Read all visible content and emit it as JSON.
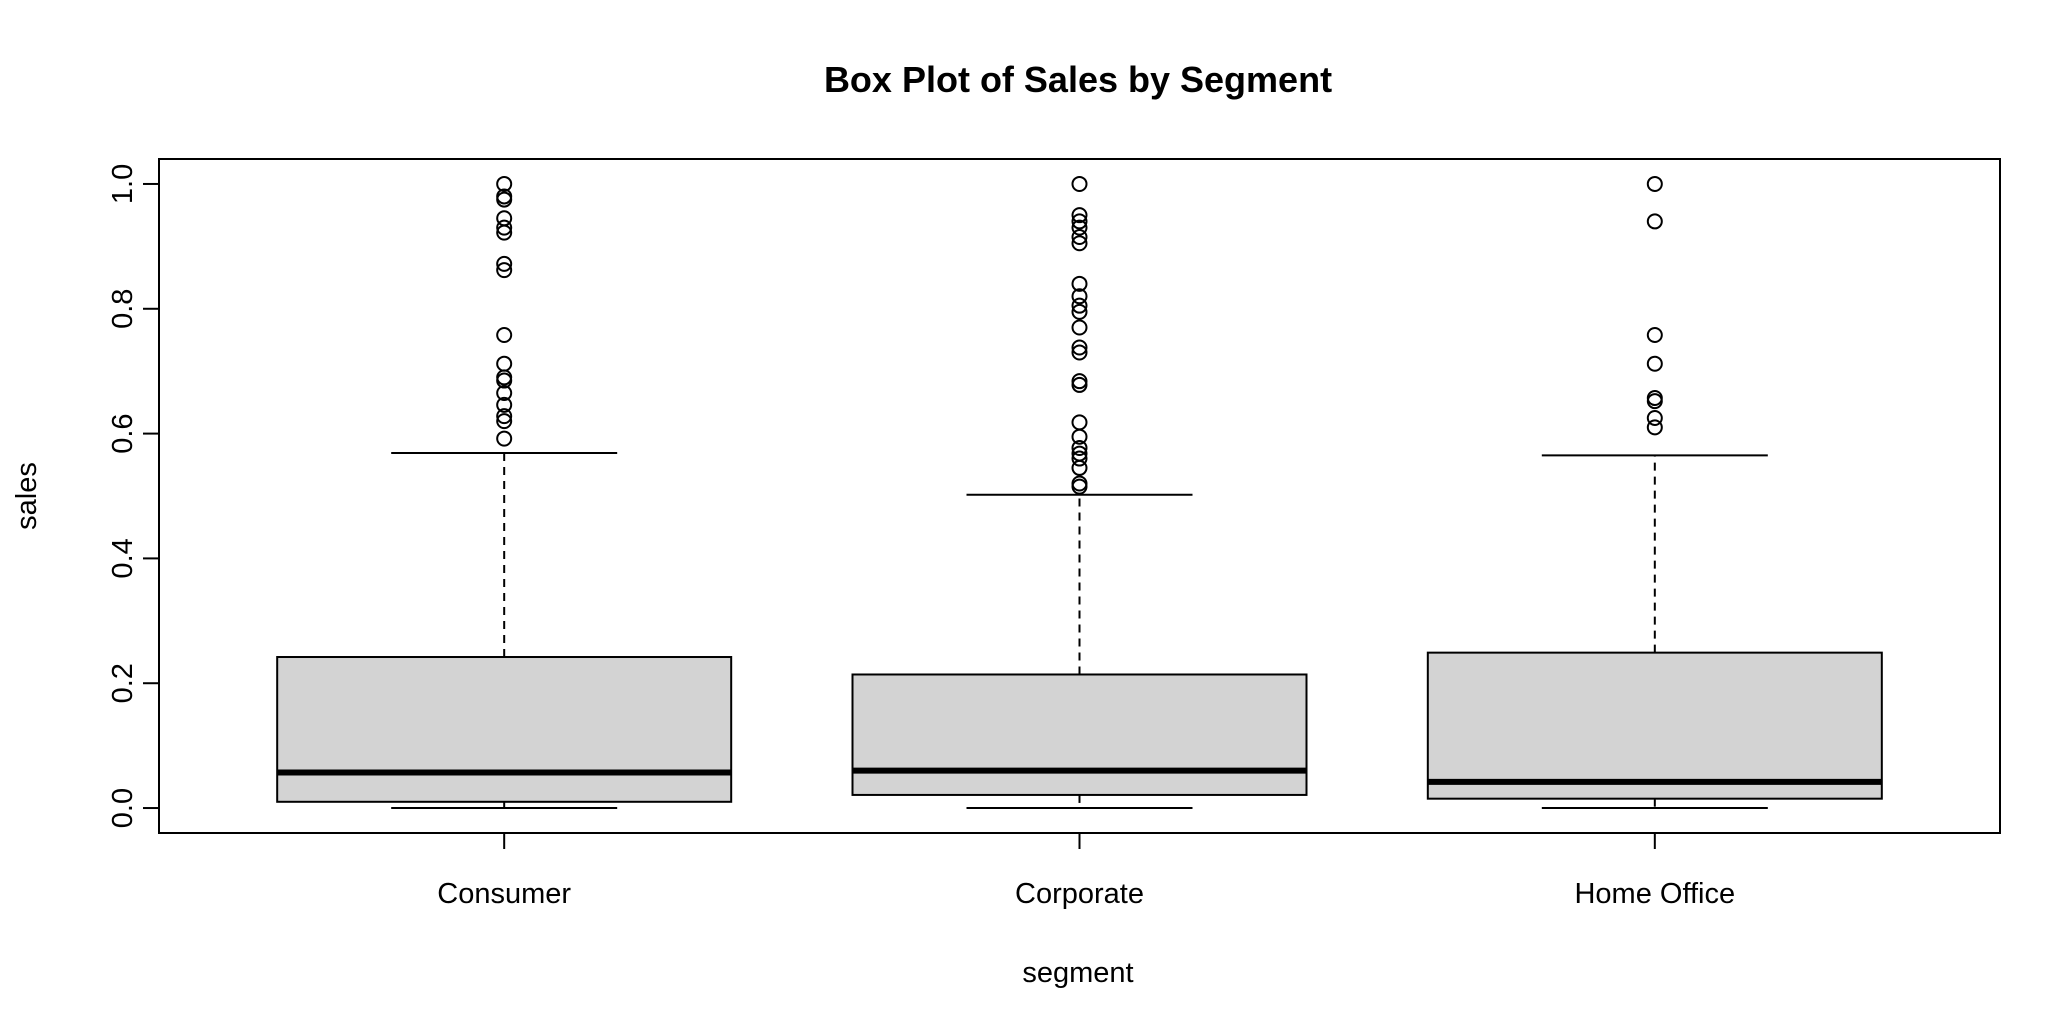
{
  "chart_data": {
    "type": "boxplot",
    "title": "Box Plot of Sales by Segment",
    "xlabel": "segment",
    "ylabel": "sales",
    "ylim": [
      -0.04,
      1.04
    ],
    "yticks": [
      "0.0",
      "0.2",
      "0.4",
      "0.6",
      "0.8",
      "1.0"
    ],
    "categories": [
      "Consumer",
      "Corporate",
      "Home Office"
    ],
    "grid": false,
    "box_fill": "#d3d3d3",
    "boxes": [
      {
        "name": "Consumer",
        "min": 0.0,
        "q1": 0.01,
        "median": 0.057,
        "q3": 0.242,
        "max": 0.569,
        "outliers": [
          0.592,
          0.62,
          0.628,
          0.646,
          0.665,
          0.685,
          0.69,
          0.712,
          0.758,
          0.862,
          0.872,
          0.922,
          0.93,
          0.945,
          0.975,
          0.98,
          1.0
        ]
      },
      {
        "name": "Corporate",
        "min": 0.0,
        "q1": 0.021,
        "median": 0.06,
        "q3": 0.214,
        "max": 0.502,
        "outliers": [
          0.515,
          0.52,
          0.545,
          0.56,
          0.568,
          0.577,
          0.595,
          0.618,
          0.678,
          0.684,
          0.73,
          0.738,
          0.77,
          0.795,
          0.805,
          0.82,
          0.84,
          0.905,
          0.915,
          0.93,
          0.94,
          0.95,
          1.0
        ]
      },
      {
        "name": "Home Office",
        "min": 0.0,
        "q1": 0.015,
        "median": 0.042,
        "q3": 0.249,
        "max": 0.565,
        "outliers": [
          0.61,
          0.625,
          0.652,
          0.657,
          0.712,
          0.758,
          0.94,
          1.0
        ]
      }
    ]
  }
}
